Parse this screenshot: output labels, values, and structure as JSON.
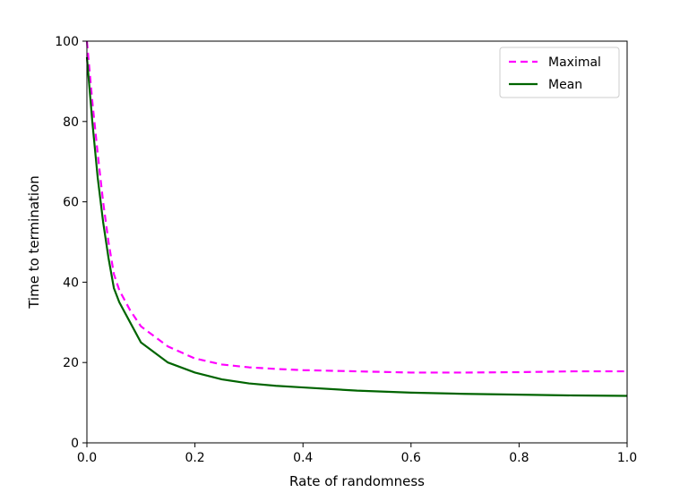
{
  "chart_data": {
    "type": "line",
    "title": "",
    "xlabel": "Rate of randomness",
    "ylabel": "Time to termination",
    "xlim": [
      0.0,
      1.0
    ],
    "ylim": [
      0,
      100
    ],
    "xticks": [
      "0.0",
      "0.2",
      "0.4",
      "0.6",
      "0.8",
      "1.0"
    ],
    "yticks": [
      "0",
      "20",
      "40",
      "60",
      "80",
      "100"
    ],
    "legend_position": "top-right",
    "grid": false,
    "series": [
      {
        "name": "Maximal",
        "color": "#ff00ff",
        "style": "dashed",
        "x": [
          0.0,
          0.01,
          0.02,
          0.03,
          0.04,
          0.05,
          0.06,
          0.08,
          0.1,
          0.15,
          0.2,
          0.25,
          0.3,
          0.35,
          0.4,
          0.5,
          0.6,
          0.7,
          0.8,
          0.9,
          1.0
        ],
        "y": [
          100,
          85,
          72,
          60,
          50,
          42,
          38,
          33,
          29,
          24,
          21,
          19.5,
          18.8,
          18.4,
          18.1,
          17.8,
          17.5,
          17.5,
          17.6,
          17.8,
          17.8
        ]
      },
      {
        "name": "Mean",
        "color": "#006400",
        "style": "solid",
        "x": [
          0.0,
          0.01,
          0.02,
          0.03,
          0.04,
          0.05,
          0.06,
          0.08,
          0.1,
          0.15,
          0.2,
          0.25,
          0.3,
          0.35,
          0.4,
          0.5,
          0.6,
          0.7,
          0.8,
          0.9,
          1.0
        ],
        "y": [
          96,
          80,
          66,
          55,
          46,
          38.5,
          35,
          30,
          25,
          20,
          17.5,
          15.8,
          14.8,
          14.2,
          13.8,
          13.0,
          12.5,
          12.2,
          12.0,
          11.8,
          11.7
        ]
      }
    ]
  }
}
